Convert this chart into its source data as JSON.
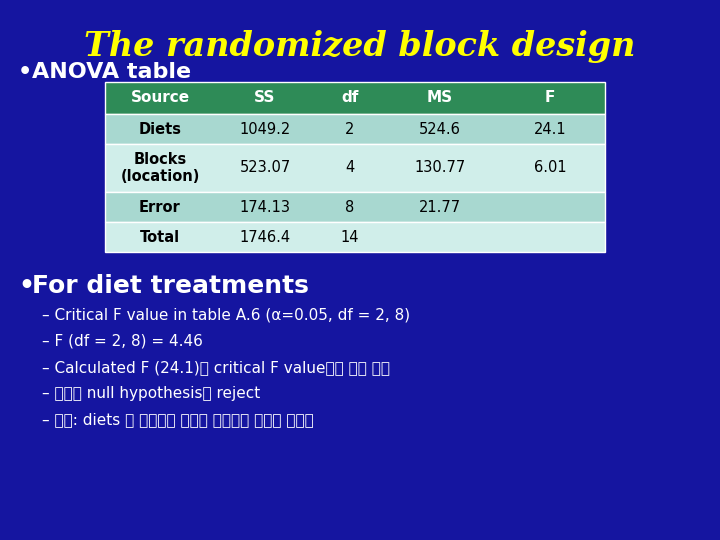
{
  "title": "The randomized block design",
  "title_color": "#FFFF00",
  "bg_color": "#1515a0",
  "bullet1": "ANOVA table",
  "bullet2": "For diet treatments",
  "table_headers": [
    "Source",
    "SS",
    "df",
    "MS",
    "F"
  ],
  "table_header_bg": "#2e8b57",
  "table_header_color": "#ffffff",
  "table_rows": [
    [
      "Diets",
      "1049.2",
      "2",
      "524.6",
      "24.1"
    ],
    [
      "Blocks\n(location)",
      "523.07",
      "4",
      "130.77",
      "6.01"
    ],
    [
      "Error",
      "174.13",
      "8",
      "21.77",
      ""
    ],
    [
      "Total",
      "1746.4",
      "14",
      "",
      ""
    ]
  ],
  "table_row_bg_odd": "#a8d8d0",
  "table_row_bg_even": "#d0eeea",
  "table_text_color": "#000000",
  "bullet_color": "#ffffff",
  "sub_bullets": [
    "Critical F value in table A.6 (α=0.05, df = 2, 8)",
    "F (df = 2, 8) = 4.46",
    "Calculated F (24.1)가 critical F value보다 훨씬 크다",
    "따라서 null hypothesis를 reject",
    "결론: diets 가 두꺼비의 혁압에 유의하게 영향을 미친다"
  ],
  "sub_bullet_color": "#ffffff"
}
